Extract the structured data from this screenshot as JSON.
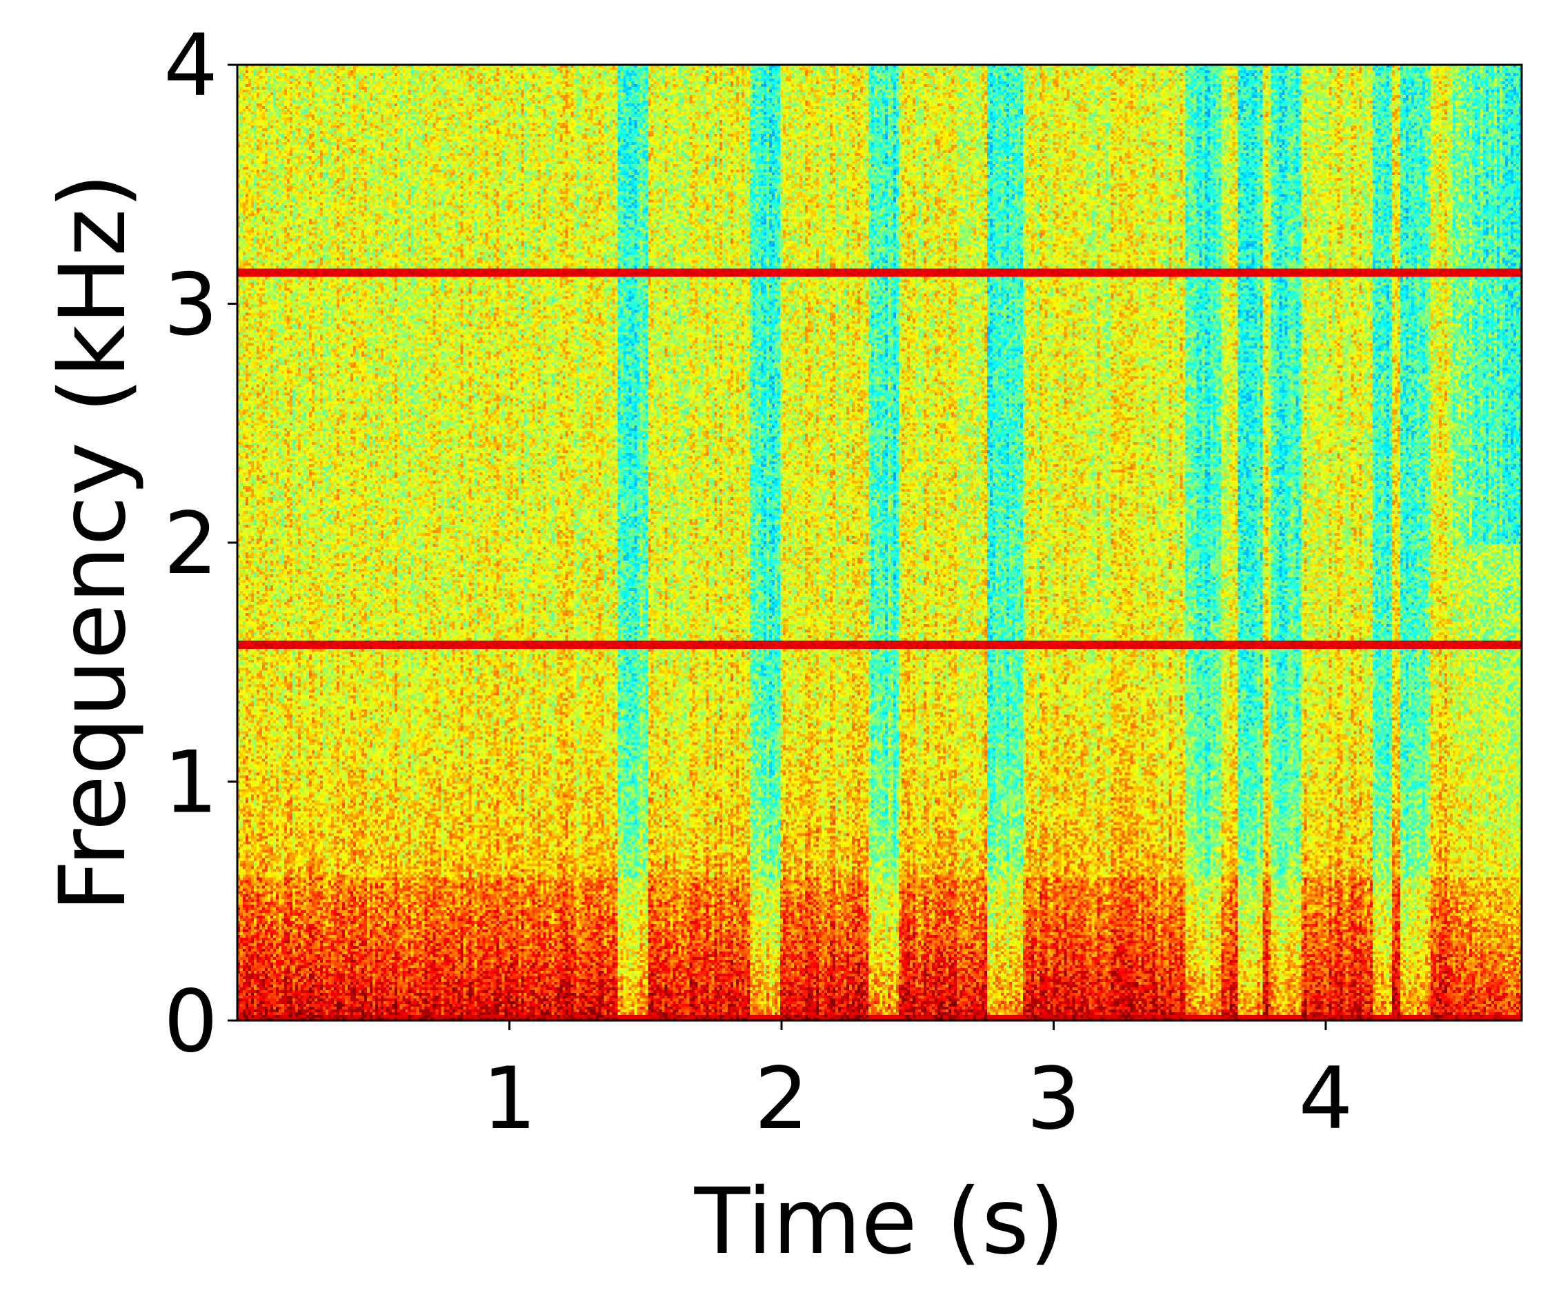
{
  "chart_data": {
    "type": "heatmap",
    "subtype": "spectrogram",
    "colormap": "jet",
    "xlabel": "Time (s)",
    "ylabel": "Frequency (kHz)",
    "xlim": [
      0,
      4.72
    ],
    "ylim": [
      0,
      4
    ],
    "x_ticks": [
      1,
      2,
      3,
      4
    ],
    "y_ticks": [
      0,
      1,
      2,
      3,
      4
    ],
    "grid": false,
    "legend": "none",
    "tonal_lines_khz": [
      1.57,
      3.13
    ],
    "quiet_columns_s": [
      1.45,
      1.93,
      2.37,
      2.82,
      3.55,
      3.72,
      3.85,
      4.2,
      4.33
    ],
    "energy": "high below 1 kHz, decreasing with frequency; quietest near 4.5–4.72 s above 2 kHz",
    "colors": {
      "axis": "#000000",
      "background": "#ffffff"
    }
  }
}
